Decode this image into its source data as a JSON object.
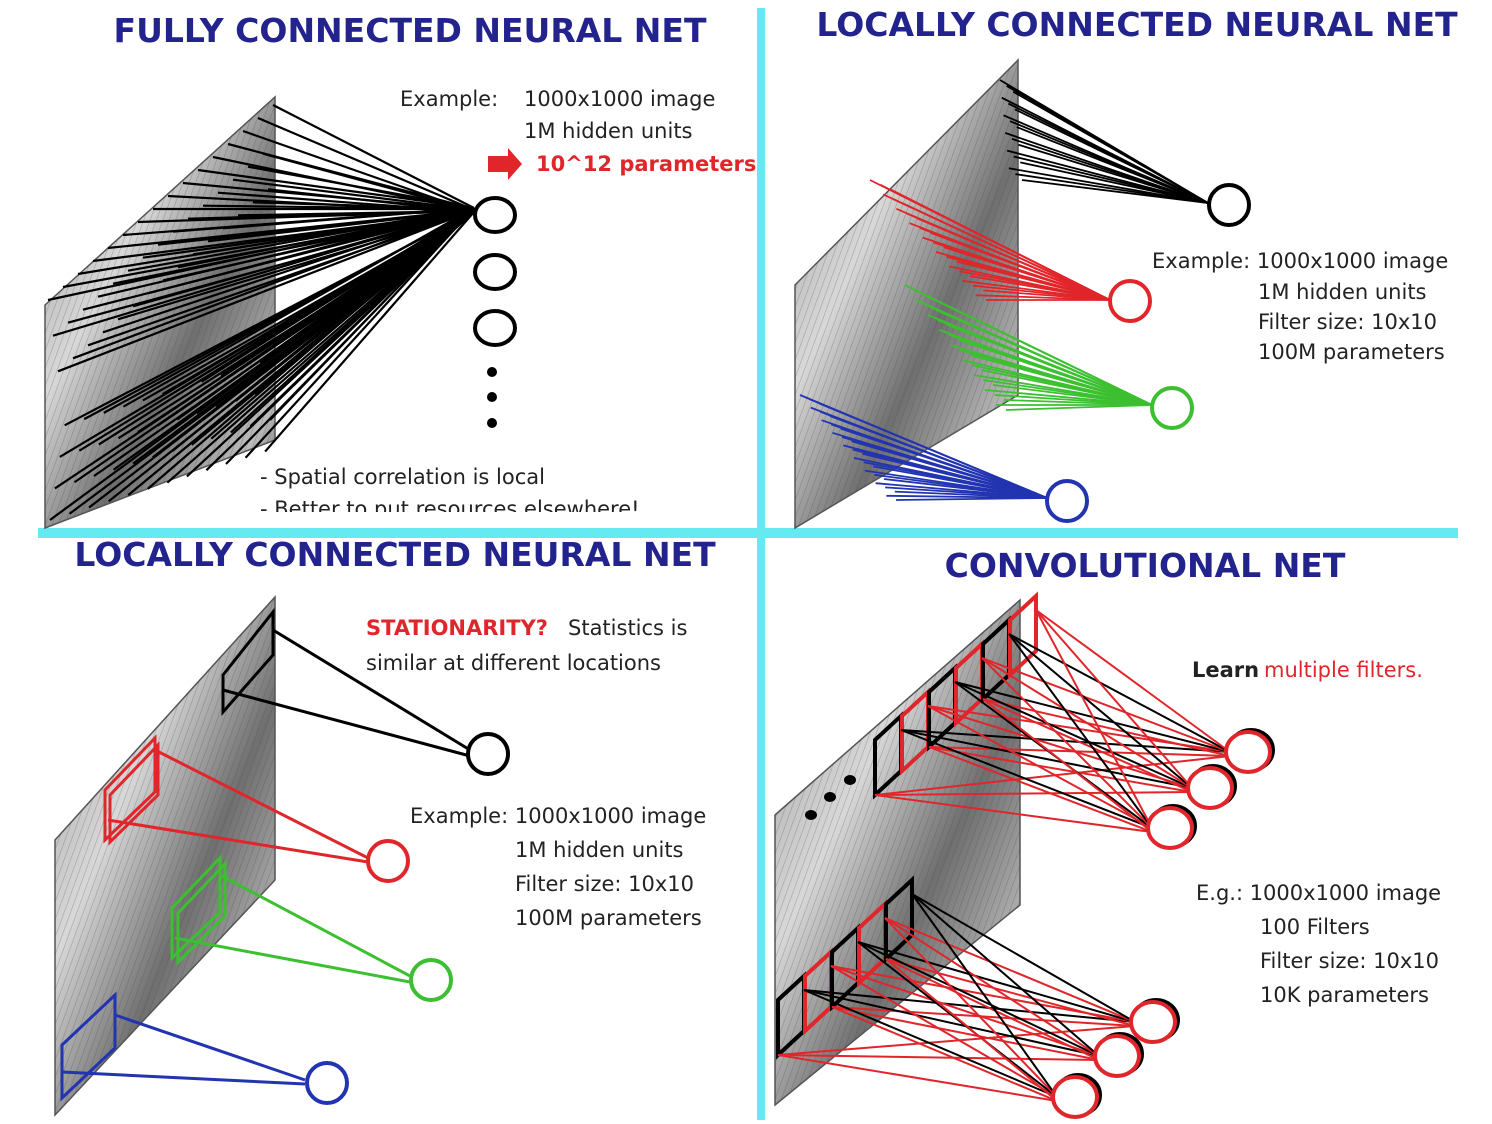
{
  "colors": {
    "title": "#23238e",
    "divider": "#66eaf2",
    "text": "#222222",
    "red": "#e0262b",
    "green": "#3cbf30",
    "blue": "#2234b0",
    "black": "#000000"
  },
  "panels": {
    "fully_connected": {
      "title": "FULLY CONNECTED NEURAL NET",
      "example_label": "Example:",
      "example_image": "1000x1000 image",
      "hidden_units": "1M hidden units",
      "parameters": "10^12 parameters",
      "note1": "- Spatial correlation is local",
      "note2": "- Better to put resources elsewhere!"
    },
    "locally_connected_top": {
      "title": "LOCALLY CONNECTED NEURAL NET",
      "example": "Example: 1000x1000 image",
      "hidden_units": "1M hidden units",
      "filter_size": "Filter size: 10x10",
      "parameters": "100M parameters"
    },
    "locally_connected_bottom": {
      "title": "LOCALLY CONNECTED NEURAL NET",
      "stationarity": "STATIONARITY?",
      "statistics": "Statistics is",
      "similar": "similar at different locations",
      "example": "Example: 1000x1000 image",
      "hidden_units": "1M hidden units",
      "filter_size": "Filter size: 10x10",
      "parameters": "100M parameters"
    },
    "convolutional": {
      "title": "CONVOLUTIONAL NET",
      "learn": "Learn",
      "multiple_filters": "multiple filters.",
      "example": "E.g.: 1000x1000 image",
      "filters": "100 Filters",
      "filter_size": "Filter size: 10x10",
      "parameters": "10K parameters"
    }
  }
}
